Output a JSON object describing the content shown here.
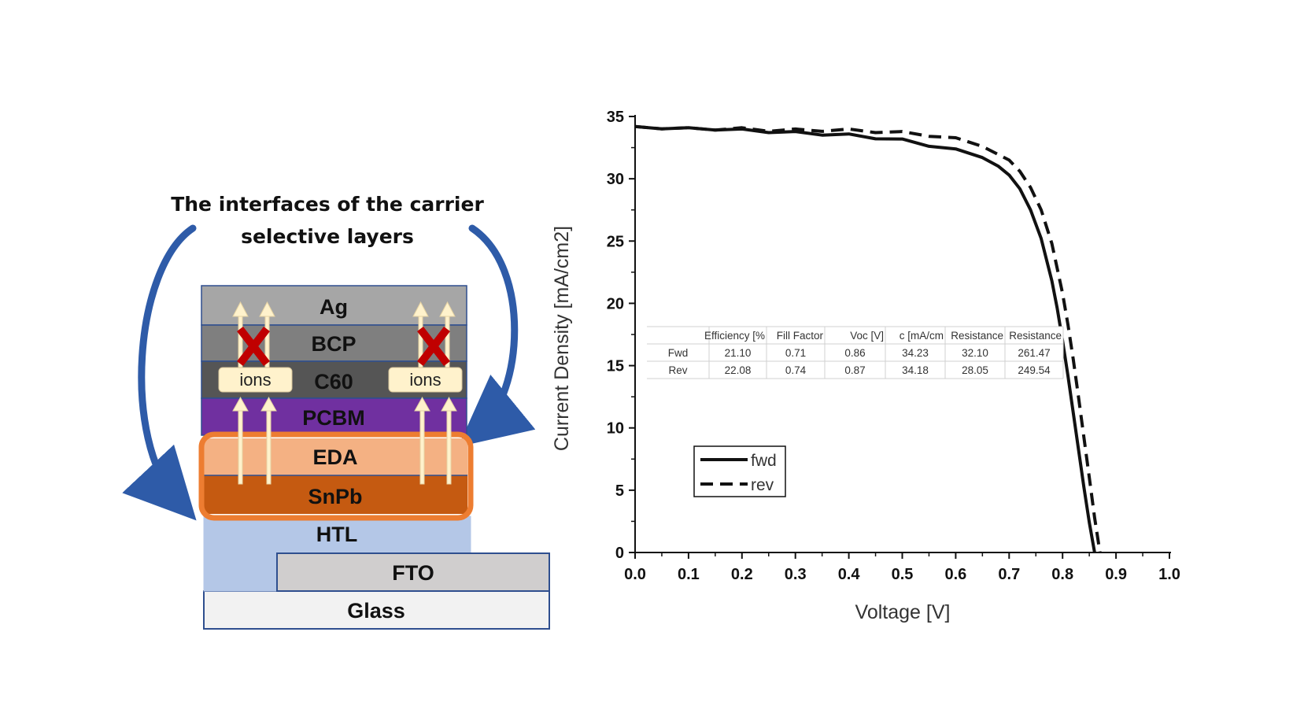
{
  "diagram": {
    "title_line1": "The interfaces of the carrier",
    "title_line2": "selective layers",
    "ions_label": "ions",
    "layers": [
      {
        "name": "Ag",
        "color": "#a6a6a6"
      },
      {
        "name": "BCP",
        "color": "#7f7f7f"
      },
      {
        "name": "C60",
        "color": "#555555"
      },
      {
        "name": "PCBM",
        "color": "#7030a0"
      },
      {
        "name": "EDA",
        "color": "#f4b183"
      },
      {
        "name": "SnPb",
        "color": "#c55a11"
      },
      {
        "name": "HTL",
        "color": "#b4c7e7"
      },
      {
        "name": "FTO",
        "color": "#d0cece"
      },
      {
        "name": "Glass",
        "color": "#f2f2f2"
      }
    ],
    "colors": {
      "border": "#2f4f8f",
      "highlight": "#ed7d31",
      "arrow": "#fff2cc",
      "cross": "#c00000",
      "curved_arrow": "#2e5ba8"
    }
  },
  "chart_data": {
    "type": "line",
    "title": "",
    "xlabel": "Voltage [V]",
    "ylabel": "Current Density [mA/cm2]",
    "xlim": [
      0.0,
      1.0
    ],
    "ylim": [
      0,
      35
    ],
    "xticks": [
      "0.0",
      "0.1",
      "0.2",
      "0.3",
      "0.4",
      "0.5",
      "0.6",
      "0.7",
      "0.8",
      "0.9",
      "1.0"
    ],
    "yticks": [
      "0",
      "5",
      "10",
      "15",
      "20",
      "25",
      "30",
      "35"
    ],
    "legend": {
      "position": "bottom-left",
      "entries": [
        "fwd",
        "rev"
      ]
    },
    "series": [
      {
        "name": "fwd",
        "style": "solid",
        "x": [
          0.0,
          0.05,
          0.1,
          0.15,
          0.2,
          0.25,
          0.3,
          0.35,
          0.4,
          0.45,
          0.5,
          0.55,
          0.6,
          0.65,
          0.68,
          0.7,
          0.72,
          0.74,
          0.76,
          0.78,
          0.79,
          0.8,
          0.81,
          0.82,
          0.83,
          0.84,
          0.85,
          0.86
        ],
        "y": [
          34.2,
          34.1,
          34.0,
          34.0,
          33.9,
          33.8,
          33.7,
          33.6,
          33.5,
          33.3,
          33.1,
          32.7,
          32.3,
          31.7,
          31.0,
          30.3,
          29.2,
          27.5,
          25.2,
          21.8,
          19.6,
          17.0,
          14.2,
          11.2,
          8.2,
          5.2,
          2.4,
          0.0
        ]
      },
      {
        "name": "rev",
        "style": "dashed",
        "x": [
          0.0,
          0.05,
          0.1,
          0.15,
          0.2,
          0.25,
          0.3,
          0.35,
          0.4,
          0.45,
          0.5,
          0.55,
          0.6,
          0.65,
          0.7,
          0.72,
          0.74,
          0.76,
          0.78,
          0.8,
          0.81,
          0.82,
          0.83,
          0.84,
          0.85,
          0.86,
          0.87
        ],
        "y": [
          34.2,
          34.1,
          34.0,
          34.0,
          34.0,
          33.9,
          33.9,
          33.9,
          33.9,
          33.8,
          33.7,
          33.5,
          33.2,
          32.6,
          31.5,
          30.6,
          29.3,
          27.5,
          24.8,
          20.8,
          18.3,
          15.5,
          12.4,
          9.2,
          6.0,
          2.8,
          0.0
        ]
      }
    ],
    "table": {
      "headers": [
        "",
        "Efficiency [%",
        "Fill Factor",
        "Voc [V]",
        "c [mA/cm",
        "Resistance",
        "Resistance"
      ],
      "rows": [
        [
          "Fwd",
          "21.10",
          "0.71",
          "0.86",
          "34.23",
          "32.10",
          "261.47"
        ],
        [
          "Rev",
          "22.08",
          "0.74",
          "0.87",
          "34.18",
          "28.05",
          "249.54"
        ]
      ]
    }
  }
}
